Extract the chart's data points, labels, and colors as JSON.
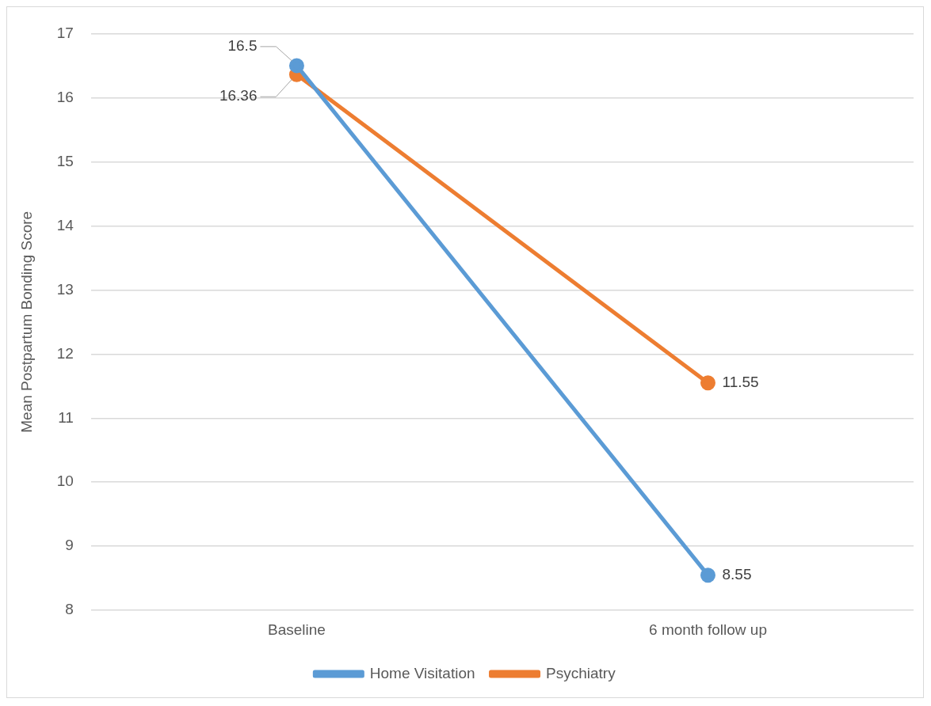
{
  "chart_data": {
    "type": "line",
    "ylabel": "Mean Postpartum Bonding Score",
    "categories": [
      "Baseline",
      "6 month follow up"
    ],
    "series": [
      {
        "name": "Home Visitation",
        "color": "#5b9bd5",
        "values": [
          16.5,
          8.55
        ]
      },
      {
        "name": "Psychiatry",
        "color": "#ed7d31",
        "values": [
          16.36,
          11.55
        ]
      }
    ],
    "ylim": [
      8,
      17
    ],
    "yticks": [
      8,
      9,
      10,
      11,
      12,
      13,
      14,
      15,
      16,
      17
    ],
    "grid": "y",
    "legend": "bottom",
    "marker": "circle",
    "line_style": "solid",
    "data_labels": true
  }
}
